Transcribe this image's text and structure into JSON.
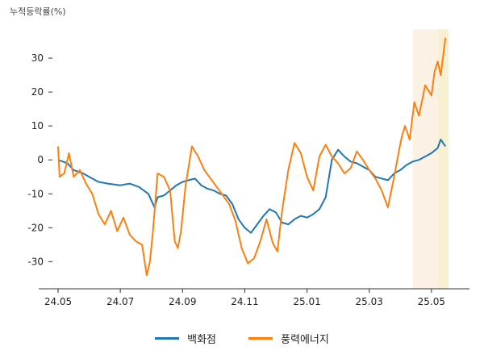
{
  "chart_data": {
    "type": "line",
    "ylabel": "누적등락률(%)",
    "x_ticks": [
      "24.05",
      "24.07",
      "24.09",
      "24.11",
      "25.01",
      "25.03",
      "25.05"
    ],
    "y_ticks": [
      30,
      20,
      10,
      0,
      -10,
      -20,
      -30
    ],
    "ylim": [
      -38,
      40
    ],
    "xlim": [
      0,
      12.6
    ],
    "grid": false,
    "legend_position": "bottom",
    "highlight_ranges": [
      {
        "from": 11.4,
        "to": 12.2,
        "color": "#fbf1e4"
      },
      {
        "from": 12.2,
        "to": 12.55,
        "color": "#f8f0d0"
      }
    ],
    "series": [
      {
        "name": "백화점",
        "color": "#1f77b4",
        "x": [
          0.0,
          0.3,
          0.5,
          0.8,
          1.0,
          1.3,
          1.6,
          2.0,
          2.3,
          2.6,
          2.9,
          3.0,
          3.1,
          3.2,
          3.4,
          3.6,
          3.8,
          4.0,
          4.2,
          4.4,
          4.6,
          4.8,
          5.0,
          5.2,
          5.4,
          5.6,
          5.8,
          6.0,
          6.2,
          6.4,
          6.6,
          6.8,
          7.0,
          7.2,
          7.4,
          7.6,
          7.8,
          8.0,
          8.2,
          8.4,
          8.6,
          8.8,
          9.0,
          9.2,
          9.4,
          9.6,
          9.8,
          10.0,
          10.2,
          10.4,
          10.6,
          10.8,
          11.0,
          11.2,
          11.4,
          11.6,
          11.8,
          12.0,
          12.2,
          12.3,
          12.45
        ],
        "y": [
          0.0,
          -1.0,
          -3.0,
          -4.0,
          -5.0,
          -6.5,
          -7.0,
          -7.5,
          -7.0,
          -8.0,
          -10.0,
          -12.0,
          -14.0,
          -11.0,
          -10.5,
          -9.0,
          -7.5,
          -6.5,
          -6.0,
          -5.5,
          -7.5,
          -8.5,
          -9.0,
          -10.0,
          -10.5,
          -13.0,
          -17.5,
          -20.0,
          -21.5,
          -19.0,
          -16.5,
          -14.5,
          -15.5,
          -18.5,
          -19.0,
          -17.5,
          -16.5,
          -17.0,
          -16.0,
          -14.5,
          -11.0,
          0.0,
          3.0,
          1.0,
          -0.5,
          -1.0,
          -2.0,
          -3.0,
          -5.0,
          -5.5,
          -6.0,
          -4.0,
          -3.0,
          -1.5,
          -0.5,
          0.0,
          1.0,
          2.0,
          3.5,
          6.0,
          4.0
        ]
      },
      {
        "name": "풍력에너지",
        "color": "#ff7f0e",
        "x": [
          0.0,
          0.05,
          0.2,
          0.35,
          0.5,
          0.7,
          0.9,
          1.1,
          1.3,
          1.5,
          1.7,
          1.9,
          2.1,
          2.3,
          2.5,
          2.7,
          2.85,
          2.95,
          3.05,
          3.2,
          3.4,
          3.6,
          3.75,
          3.85,
          3.95,
          4.1,
          4.3,
          4.5,
          4.7,
          4.9,
          5.1,
          5.3,
          5.5,
          5.7,
          5.9,
          6.1,
          6.3,
          6.5,
          6.7,
          6.9,
          7.05,
          7.2,
          7.4,
          7.6,
          7.8,
          8.0,
          8.2,
          8.4,
          8.6,
          8.8,
          9.0,
          9.2,
          9.4,
          9.6,
          9.8,
          10.0,
          10.2,
          10.4,
          10.6,
          10.8,
          10.95,
          11.05,
          11.15,
          11.3,
          11.45,
          11.6,
          11.8,
          12.0,
          12.1,
          12.2,
          12.3,
          12.45
        ],
        "y": [
          4.0,
          -5.0,
          -4.0,
          2.0,
          -5.0,
          -3.0,
          -7.0,
          -10.0,
          -16.0,
          -19.0,
          -15.0,
          -21.0,
          -17.0,
          -22.0,
          -24.0,
          -25.0,
          -34.0,
          -30.0,
          -21.0,
          -4.0,
          -5.0,
          -9.0,
          -24.0,
          -26.0,
          -21.0,
          -7.5,
          4.0,
          1.0,
          -3.0,
          -5.5,
          -8.0,
          -10.5,
          -13.0,
          -18.0,
          -26.0,
          -30.5,
          -29.0,
          -24.0,
          -17.5,
          -24.5,
          -27.0,
          -15.0,
          -3.0,
          5.0,
          2.0,
          -5.0,
          -9.0,
          1.0,
          4.5,
          1.0,
          -1.0,
          -4.0,
          -2.5,
          2.5,
          0.0,
          -3.0,
          -5.5,
          -9.0,
          -14.0,
          -5.0,
          2.5,
          7.0,
          10.0,
          6.0,
          17.0,
          13.0,
          22.0,
          19.0,
          26.0,
          29.0,
          25.0,
          36.0
        ]
      }
    ]
  }
}
